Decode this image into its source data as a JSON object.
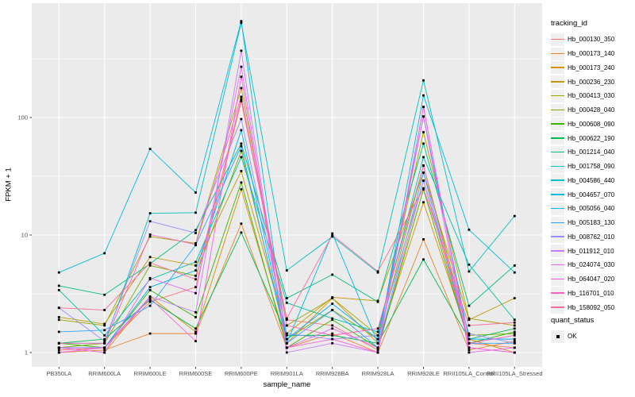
{
  "chart_data": {
    "type": "line",
    "title": "",
    "xlabel": "sample_name",
    "ylabel": "FPKM + 1",
    "y_scale": "log10",
    "y_major_ticks": [
      1,
      10,
      100
    ],
    "y_minor_ticks": [
      3.162,
      31.62,
      316.2
    ],
    "ylim": [
      0.75,
      970
    ],
    "grid": "on",
    "panel_background": "#EBEBEB",
    "grid_color": "#FFFFFF",
    "point_color": "#000000",
    "categories": [
      "PB350LA",
      "RRIM600LA",
      "RRIM600LE",
      "RRIM600SE",
      "RRIM600PE",
      "RRIM901LA",
      "RRIM928BA",
      "RRIM928LA",
      "RRIM928LE",
      "RRII105LA_Control",
      "RRII105LA_Stressed"
    ],
    "legend_title": "tracking_id",
    "legend2_title": "quant_status",
    "legend2_entries": [
      {
        "label": "OK",
        "marker": "black-square"
      }
    ],
    "series": [
      {
        "name": "Hb_000130_350",
        "color": "#F8766D",
        "values": [
          1.05,
          1.1,
          2.7,
          3.6,
          138,
          1.9,
          1.7,
          1.05,
          29,
          1.2,
          1.1
        ]
      },
      {
        "name": "Hb_000173_140",
        "color": "#EA8331",
        "values": [
          1.0,
          1.05,
          1.45,
          1.45,
          12.5,
          1.1,
          1.45,
          1.0,
          9.2,
          1.05,
          1.25
        ]
      },
      {
        "name": "Hb_000173_240",
        "color": "#D89000",
        "values": [
          1.1,
          1.0,
          3.0,
          1.5,
          24.5,
          1.2,
          2.9,
          1.2,
          19,
          1.3,
          1.0
        ]
      },
      {
        "name": "Hb_000236_230",
        "color": "#C09B00",
        "values": [
          2.0,
          1.75,
          6.5,
          5.5,
          35,
          1.45,
          2.95,
          2.75,
          34,
          1.9,
          2.9
        ]
      },
      {
        "name": "Hb_000413_030",
        "color": "#A3A500",
        "values": [
          1.9,
          1.7,
          9.7,
          8.5,
          178,
          1.7,
          2.9,
          1.4,
          75,
          1.95,
          1.7
        ]
      },
      {
        "name": "Hb_000428_040",
        "color": "#7CAE00",
        "values": [
          1.1,
          1.2,
          5.5,
          4.5,
          52,
          1.3,
          2.3,
          1.3,
          39,
          1.4,
          1.45
        ]
      },
      {
        "name": "Hb_000608_090",
        "color": "#39B600",
        "values": [
          1.2,
          1.1,
          3.4,
          2.0,
          28,
          1.1,
          1.9,
          1.1,
          24.5,
          1.2,
          1.5
        ]
      },
      {
        "name": "Hb_000622_190",
        "color": "#00BB4E",
        "values": [
          1.2,
          1.3,
          2.8,
          1.6,
          10.5,
          1.4,
          1.4,
          1.2,
          6.2,
          1.3,
          1.6
        ]
      },
      {
        "name": "Hb_001214_040",
        "color": "#00BF7D",
        "values": [
          3.7,
          3.1,
          5.7,
          11,
          60,
          2.9,
          4.6,
          2.7,
          60,
          2.5,
          5.5
        ]
      },
      {
        "name": "Hb_001758_090",
        "color": "#00C0A7",
        "values": [
          3.4,
          1.4,
          4.2,
          5.9,
          46,
          2.65,
          1.95,
          1.5,
          46,
          5.6,
          1.9
        ]
      },
      {
        "name": "Hb_004586_440",
        "color": "#00BFC4",
        "values": [
          1.2,
          1.2,
          15.3,
          15.5,
          640,
          5.0,
          9.7,
          4.8,
          207,
          4.9,
          14.5
        ]
      },
      {
        "name": "Hb_004657_070",
        "color": "#00BAE0",
        "values": [
          4.8,
          7.0,
          54,
          23,
          660,
          1.2,
          10.3,
          1.2,
          154,
          11.1,
          4.8
        ]
      },
      {
        "name": "Hb_005056_040",
        "color": "#00B0F6",
        "values": [
          1.1,
          1.1,
          3.6,
          5.0,
          78,
          1.3,
          2.6,
          1.3,
          102,
          1.3,
          1.3
        ]
      },
      {
        "name": "Hb_005183_130",
        "color": "#35A2FF",
        "values": [
          1.5,
          1.55,
          2.5,
          8.2,
          57,
          1.2,
          2.3,
          1.1,
          34,
          1.2,
          1.2
        ]
      },
      {
        "name": "Hb_008762_010",
        "color": "#9590FF",
        "values": [
          2.4,
          1.25,
          13.1,
          10.4,
          97,
          1.45,
          1.3,
          1.4,
          29,
          1.45,
          1.2
        ]
      },
      {
        "name": "Hb_011912_010",
        "color": "#C77CFF",
        "values": [
          1.1,
          1.1,
          3.0,
          2.2,
          370,
          1.0,
          1.2,
          1.0,
          123,
          1.1,
          1.0
        ]
      },
      {
        "name": "Hb_024074_030",
        "color": "#E76BF3",
        "values": [
          1.1,
          1.0,
          4.3,
          3.2,
          270,
          1.1,
          1.6,
          1.1,
          102,
          1.0,
          1.1
        ]
      },
      {
        "name": "Hb_064047_020",
        "color": "#FA62DB",
        "values": [
          1.0,
          1.1,
          2.9,
          1.25,
          222,
          1.1,
          1.3,
          1.0,
          123,
          1.1,
          1.0
        ]
      },
      {
        "name": "Hb_116701_010",
        "color": "#FF62BC",
        "values": [
          1.2,
          1.2,
          10.1,
          8.3,
          150,
          1.7,
          1.4,
          1.6,
          39,
          1.2,
          1.4
        ]
      },
      {
        "name": "Hb_158092_050",
        "color": "#FF6A98",
        "values": [
          2.4,
          2.3,
          5.8,
          4.2,
          143,
          1.95,
          10.0,
          4.9,
          25,
          1.7,
          1.8
        ]
      }
    ]
  },
  "layout_text": {
    "x_axis_title": "sample_name",
    "y_axis_title": "FPKM + 1",
    "legend_title": "tracking_id",
    "legend2_title": "quant_status",
    "legend2_ok": "OK"
  }
}
